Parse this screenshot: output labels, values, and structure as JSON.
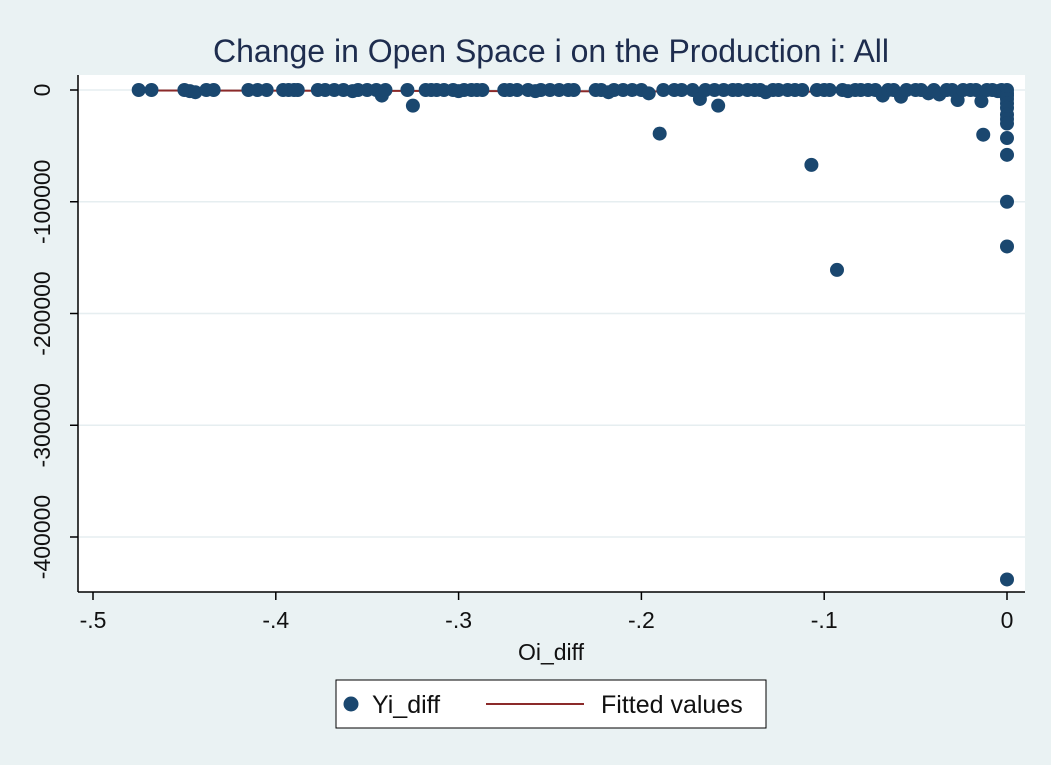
{
  "chart_data": {
    "type": "scatter",
    "title": "Change in Open Space i on the Production i: All",
    "xlabel": "Oi_diff",
    "ylabel": "",
    "xlim": [
      -0.5,
      0
    ],
    "ylim": [
      -430000,
      0
    ],
    "x_ticks": [
      -0.5,
      -0.4,
      -0.3,
      -0.2,
      -0.1,
      0
    ],
    "x_tick_labels": [
      "-.5",
      "-.4",
      "-.3",
      "-.2",
      "-.1",
      "0"
    ],
    "y_ticks": [
      0,
      -100000,
      -200000,
      -300000,
      -400000
    ],
    "y_tick_labels": [
      "0",
      "-100000",
      "-200000",
      "-300000",
      "-400000"
    ],
    "grid": true,
    "legend_position": "bottom",
    "colors": {
      "points": "#1a476f",
      "fit": "#8b2a2a",
      "plot_bg": "#ffffff",
      "page_bg": "#eaf2f3",
      "grid": "#e6eef0"
    },
    "series": [
      {
        "name": "Yi_diff",
        "kind": "scatter",
        "points": [
          [
            -0.475,
            0
          ],
          [
            -0.468,
            0
          ],
          [
            -0.45,
            0
          ],
          [
            -0.447,
            -1000
          ],
          [
            -0.444,
            -2000
          ],
          [
            -0.438,
            0
          ],
          [
            -0.434,
            0
          ],
          [
            -0.415,
            0
          ],
          [
            -0.41,
            0
          ],
          [
            -0.405,
            0
          ],
          [
            -0.396,
            0
          ],
          [
            -0.393,
            0
          ],
          [
            -0.39,
            0
          ],
          [
            -0.388,
            0
          ],
          [
            -0.377,
            0
          ],
          [
            -0.373,
            0
          ],
          [
            -0.368,
            0
          ],
          [
            -0.363,
            0
          ],
          [
            -0.358,
            -1000
          ],
          [
            -0.355,
            0
          ],
          [
            -0.35,
            0
          ],
          [
            -0.345,
            0
          ],
          [
            -0.342,
            -5000
          ],
          [
            -0.34,
            0
          ],
          [
            -0.328,
            0
          ],
          [
            -0.325,
            -14000
          ],
          [
            -0.318,
            0
          ],
          [
            -0.315,
            0
          ],
          [
            -0.312,
            0
          ],
          [
            -0.308,
            0
          ],
          [
            -0.303,
            0
          ],
          [
            -0.3,
            -1000
          ],
          [
            -0.297,
            0
          ],
          [
            -0.293,
            0
          ],
          [
            -0.29,
            0
          ],
          [
            -0.287,
            0
          ],
          [
            -0.275,
            0
          ],
          [
            -0.272,
            0
          ],
          [
            -0.268,
            0
          ],
          [
            -0.262,
            0
          ],
          [
            -0.258,
            -1000
          ],
          [
            -0.255,
            0
          ],
          [
            -0.25,
            0
          ],
          [
            -0.245,
            0
          ],
          [
            -0.24,
            0
          ],
          [
            -0.237,
            0
          ],
          [
            -0.225,
            0
          ],
          [
            -0.222,
            0
          ],
          [
            -0.218,
            -2000
          ],
          [
            -0.215,
            0
          ],
          [
            -0.21,
            0
          ],
          [
            -0.205,
            0
          ],
          [
            -0.2,
            0
          ],
          [
            -0.196,
            -3000
          ],
          [
            -0.19,
            -39000
          ],
          [
            -0.188,
            0
          ],
          [
            -0.182,
            0
          ],
          [
            -0.178,
            0
          ],
          [
            -0.172,
            0
          ],
          [
            -0.168,
            -8000
          ],
          [
            -0.165,
            0
          ],
          [
            -0.16,
            0
          ],
          [
            -0.158,
            -14000
          ],
          [
            -0.155,
            0
          ],
          [
            -0.15,
            0
          ],
          [
            -0.147,
            0
          ],
          [
            -0.142,
            0
          ],
          [
            -0.138,
            0
          ],
          [
            -0.135,
            0
          ],
          [
            -0.132,
            -2000
          ],
          [
            -0.128,
            0
          ],
          [
            -0.125,
            0
          ],
          [
            -0.12,
            0
          ],
          [
            -0.116,
            0
          ],
          [
            -0.112,
            0
          ],
          [
            -0.107,
            -67000
          ],
          [
            -0.104,
            0
          ],
          [
            -0.1,
            0
          ],
          [
            -0.097,
            0
          ],
          [
            -0.093,
            -161000
          ],
          [
            -0.09,
            0
          ],
          [
            -0.087,
            -1000
          ],
          [
            -0.083,
            0
          ],
          [
            -0.08,
            0
          ],
          [
            -0.076,
            0
          ],
          [
            -0.072,
            0
          ],
          [
            -0.068,
            -5000
          ],
          [
            -0.065,
            0
          ],
          [
            -0.062,
            0
          ],
          [
            -0.058,
            -6000
          ],
          [
            -0.055,
            0
          ],
          [
            -0.05,
            0
          ],
          [
            -0.047,
            0
          ],
          [
            -0.043,
            -3000
          ],
          [
            -0.04,
            0
          ],
          [
            -0.037,
            -4000
          ],
          [
            -0.033,
            0
          ],
          [
            -0.03,
            0
          ],
          [
            -0.027,
            -9000
          ],
          [
            -0.024,
            0
          ],
          [
            -0.02,
            0
          ],
          [
            -0.017,
            0
          ],
          [
            -0.014,
            -10000
          ],
          [
            -0.013,
            -40000
          ],
          [
            -0.011,
            0
          ],
          [
            -0.008,
            0
          ],
          [
            -0.005,
            -1000
          ],
          [
            -0.003,
            0
          ],
          [
            -0.002,
            -2000
          ],
          [
            0,
            0
          ],
          [
            0,
            -3000
          ],
          [
            0,
            -5000
          ],
          [
            0,
            -8000
          ],
          [
            0,
            -12000
          ],
          [
            0,
            -16000
          ],
          [
            0,
            -22000
          ],
          [
            0,
            -26000
          ],
          [
            0,
            -30000
          ],
          [
            0,
            -43000
          ],
          [
            0,
            -58000
          ],
          [
            0,
            -100000
          ],
          [
            0,
            -140000
          ],
          [
            0,
            -438000
          ]
        ]
      },
      {
        "name": "Fitted values",
        "kind": "line",
        "points": [
          [
            -0.475,
            -400
          ],
          [
            0,
            -1800
          ]
        ]
      }
    ]
  }
}
